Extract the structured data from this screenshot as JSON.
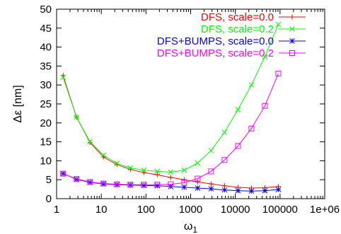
{
  "chart_data": {
    "type": "line",
    "xlabel": "ω",
    "xlabel_sub": "1",
    "ylabel": "Δε [nm]",
    "xscale": "log",
    "xlim": [
      1,
      1000000
    ],
    "ylim": [
      0,
      50
    ],
    "x_ticks": [
      1,
      10,
      100,
      1000,
      10000,
      100000,
      1000000
    ],
    "x_tick_labels": [
      "1",
      "10",
      "100",
      "1000",
      "10000",
      "100000",
      "1e+06"
    ],
    "y_ticks": [
      0,
      5,
      10,
      15,
      20,
      25,
      30,
      35,
      40,
      45,
      50
    ],
    "y_tick_labels": [
      "0",
      "5",
      "10",
      "15",
      "20",
      "25",
      "30",
      "35",
      "40",
      "45",
      "50"
    ],
    "grid": false,
    "legend_position": "top-right",
    "series": [
      {
        "name": "DFS, scale=0.0",
        "color": "#ff0000",
        "marker": "plus",
        "x": [
          1.4,
          2.8,
          5.6,
          11.2,
          22.4,
          44.8,
          89.6,
          179,
          358,
          717,
          1434,
          2867,
          5734,
          11469,
          22938,
          45875,
          91750
        ],
        "y": [
          32.5,
          21.5,
          14.8,
          11.0,
          9.0,
          7.7,
          6.9,
          6.3,
          5.6,
          5.0,
          4.4,
          3.9,
          3.4,
          3.0,
          2.8,
          2.9,
          3.2
        ]
      },
      {
        "name": "DFS, scale=0.2",
        "color": "#00ff00",
        "marker": "x",
        "x": [
          1.4,
          2.8,
          5.6,
          11.2,
          22.4,
          44.8,
          89.6,
          179,
          358,
          717,
          1434,
          2867,
          5734,
          11469,
          22938,
          45875,
          91750
        ],
        "y": [
          32.0,
          21.5,
          15.0,
          11.5,
          9.3,
          8.1,
          7.5,
          7.2,
          7.0,
          7.5,
          9.4,
          12.7,
          17.5,
          23.5,
          30.0,
          37.5,
          46.0
        ]
      },
      {
        "name": "DFS+BUMPS, scale=0.0",
        "color": "#0000ff",
        "marker": "star",
        "x": [
          1.4,
          2.8,
          5.6,
          11.2,
          22.4,
          44.8,
          89.6,
          179,
          358,
          717,
          1434,
          2867,
          5734,
          11469,
          22938,
          45875,
          91750
        ],
        "y": [
          6.6,
          5.1,
          4.3,
          3.9,
          3.7,
          3.6,
          3.5,
          3.4,
          3.2,
          3.0,
          2.8,
          2.6,
          2.3,
          2.1,
          2.0,
          2.1,
          2.4
        ]
      },
      {
        "name": "DFS+BUMPS, scale=0.2",
        "color": "#ff00ff",
        "marker": "square",
        "x": [
          1.4,
          2.8,
          5.6,
          11.2,
          22.4,
          44.8,
          89.6,
          179,
          358,
          717,
          1434,
          2867,
          5734,
          11469,
          22938,
          45875,
          91750
        ],
        "y": [
          6.6,
          5.2,
          4.4,
          4.0,
          3.8,
          3.7,
          3.7,
          3.7,
          3.8,
          4.2,
          5.3,
          7.2,
          10.2,
          13.9,
          18.5,
          24.5,
          33.0
        ]
      }
    ]
  }
}
